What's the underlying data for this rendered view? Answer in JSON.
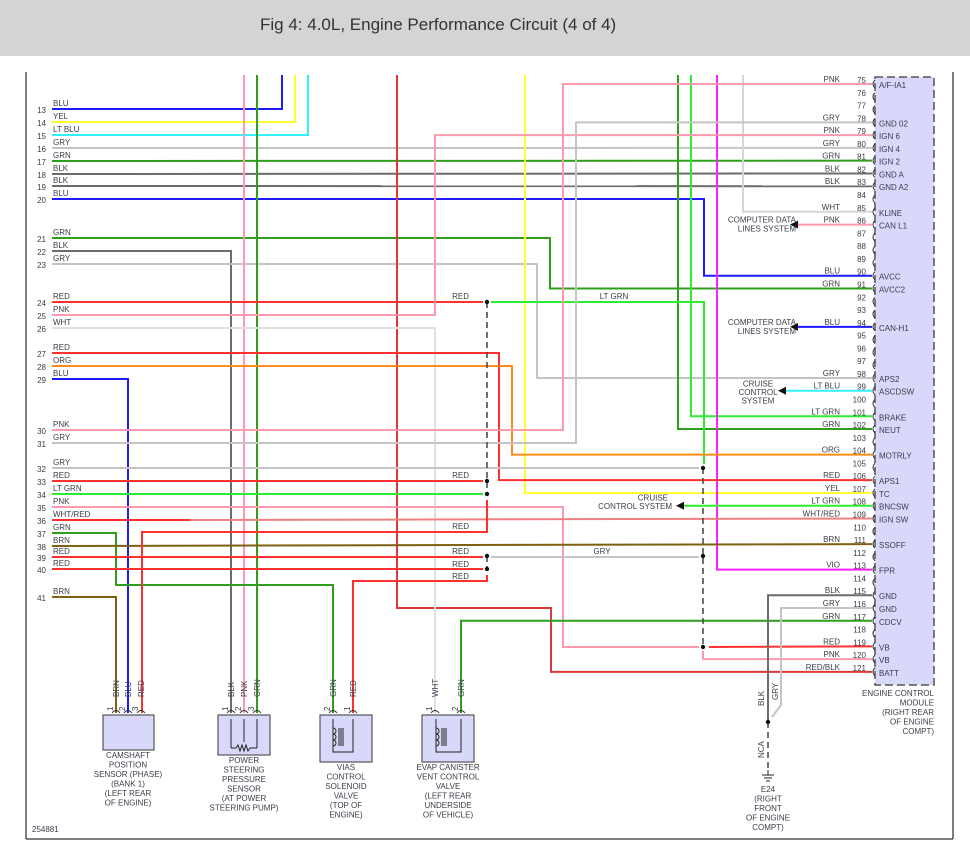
{
  "title": "Fig 4: 4.0L, Engine Performance Circuit (4 of 4)",
  "figure_id": "254881",
  "wire_colors": {
    "BLU": "#1c1cff",
    "YEL": "#ffff30",
    "LT BLU": "#33f0ff",
    "GRY": "#c4c4c4",
    "GRN": "#2f9e1c",
    "BLK": "#6c6c6c",
    "RED": "#ff3030",
    "PNK": "#ff9aae",
    "WHT": "#e0e0e0",
    "ORG": "#ff8c1a",
    "LT GRN": "#30ec30",
    "BRN": "#7f6010",
    "VIO": "#ff20ff",
    "WHT/RED": "#ff5050",
    "RED/BLK": "#e03838"
  },
  "left_pins": [
    {
      "num": "13",
      "color": "BLU"
    },
    {
      "num": "14",
      "color": "YEL"
    },
    {
      "num": "15",
      "color": "LT BLU"
    },
    {
      "num": "16",
      "color": "GRY"
    },
    {
      "num": "17",
      "color": "GRN"
    },
    {
      "num": "18",
      "color": "BLK"
    },
    {
      "num": "19",
      "color": "BLK"
    },
    {
      "num": "20",
      "color": "BLU"
    },
    {
      "num": "21",
      "color": "GRN"
    },
    {
      "num": "22",
      "color": "BLK"
    },
    {
      "num": "23",
      "color": "GRY"
    },
    {
      "num": "24",
      "color": "RED"
    },
    {
      "num": "25",
      "color": "PNK"
    },
    {
      "num": "26",
      "color": "WHT"
    },
    {
      "num": "27",
      "color": "RED"
    },
    {
      "num": "28",
      "color": "ORG"
    },
    {
      "num": "29",
      "color": "BLU"
    },
    {
      "num": "30",
      "color": "PNK"
    },
    {
      "num": "31",
      "color": "GRY"
    },
    {
      "num": "32",
      "color": "GRY"
    },
    {
      "num": "33",
      "color": "RED"
    },
    {
      "num": "34",
      "color": "LT GRN"
    },
    {
      "num": "35",
      "color": "PNK"
    },
    {
      "num": "36",
      "color": "WHT/RED"
    },
    {
      "num": "37",
      "color": "GRN"
    },
    {
      "num": "38",
      "color": "BRN"
    },
    {
      "num": "39",
      "color": "RED"
    },
    {
      "num": "40",
      "color": "RED"
    },
    {
      "num": "41",
      "color": "BRN"
    }
  ],
  "ecm": {
    "label": [
      "ENGINE CONTROL",
      "MODULE",
      "(RIGHT REAR",
      "OF ENGINE",
      "COMPT)"
    ],
    "pins": [
      {
        "num": "75",
        "color": "PNK",
        "name": "A/F-IA1"
      },
      {
        "num": "76",
        "color": "",
        "name": ""
      },
      {
        "num": "77",
        "color": "",
        "name": ""
      },
      {
        "num": "78",
        "color": "GRY",
        "name": "GND 02"
      },
      {
        "num": "79",
        "color": "PNK",
        "name": "IGN 6"
      },
      {
        "num": "80",
        "color": "GRY",
        "name": "IGN 4"
      },
      {
        "num": "81",
        "color": "GRN",
        "name": "IGN 2"
      },
      {
        "num": "82",
        "color": "BLK",
        "name": "GND A"
      },
      {
        "num": "83",
        "color": "BLK",
        "name": "GND A2"
      },
      {
        "num": "84",
        "color": "",
        "name": ""
      },
      {
        "num": "85",
        "color": "WHT",
        "name": "KLINE"
      },
      {
        "num": "86",
        "color": "PNK",
        "name": "CAN L1"
      },
      {
        "num": "87",
        "color": "",
        "name": ""
      },
      {
        "num": "88",
        "color": "",
        "name": ""
      },
      {
        "num": "89",
        "color": "",
        "name": ""
      },
      {
        "num": "90",
        "color": "BLU",
        "name": "AVCC"
      },
      {
        "num": "91",
        "color": "GRN",
        "name": "AVCC2"
      },
      {
        "num": "92",
        "color": "",
        "name": ""
      },
      {
        "num": "93",
        "color": "",
        "name": ""
      },
      {
        "num": "94",
        "color": "BLU",
        "name": "CAN-H1"
      },
      {
        "num": "95",
        "color": "",
        "name": ""
      },
      {
        "num": "96",
        "color": "",
        "name": ""
      },
      {
        "num": "97",
        "color": "",
        "name": ""
      },
      {
        "num": "98",
        "color": "GRY",
        "name": "APS2"
      },
      {
        "num": "99",
        "color": "LT BLU",
        "name": "ASCDSW"
      },
      {
        "num": "100",
        "color": "",
        "name": ""
      },
      {
        "num": "101",
        "color": "LT GRN",
        "name": "BRAKE"
      },
      {
        "num": "102",
        "color": "GRN",
        "name": "NEUT"
      },
      {
        "num": "103",
        "color": "",
        "name": ""
      },
      {
        "num": "104",
        "color": "ORG",
        "name": "MOTRLY"
      },
      {
        "num": "105",
        "color": "",
        "name": ""
      },
      {
        "num": "106",
        "color": "RED",
        "name": "APS1"
      },
      {
        "num": "107",
        "color": "YEL",
        "name": "TC"
      },
      {
        "num": "108",
        "color": "LT GRN",
        "name": "BNCSW"
      },
      {
        "num": "109",
        "color": "WHT/RED",
        "name": "IGN SW"
      },
      {
        "num": "110",
        "color": "",
        "name": ""
      },
      {
        "num": "111",
        "color": "BRN",
        "name": "SSOFF"
      },
      {
        "num": "112",
        "color": "",
        "name": ""
      },
      {
        "num": "113",
        "color": "VIO",
        "name": "FPR"
      },
      {
        "num": "114",
        "color": "",
        "name": ""
      },
      {
        "num": "115",
        "color": "BLK",
        "name": "GND"
      },
      {
        "num": "116",
        "color": "GRY",
        "name": "GND"
      },
      {
        "num": "117",
        "color": "GRN",
        "name": "CDCV"
      },
      {
        "num": "118",
        "color": "",
        "name": ""
      },
      {
        "num": "119",
        "color": "RED",
        "name": "VB"
      },
      {
        "num": "120",
        "color": "PNK",
        "name": "VB"
      },
      {
        "num": "121",
        "color": "RED/BLK",
        "name": "BATT"
      }
    ]
  },
  "destinations": {
    "computer_data_86": [
      "COMPUTER DATA",
      "LINES SYSTEM"
    ],
    "computer_data_94": [
      "COMPUTER DATA",
      "LINES SYSTEM"
    ],
    "cruise_99": [
      "CRUISE",
      "CONTROL",
      "SYSTEM"
    ],
    "cruise_108": [
      "CRUISE",
      "CONTROL SYSTEM"
    ]
  },
  "splice_labels": {
    "s24": "RED",
    "s24_out": "LT GRN",
    "s33": "RED",
    "s37": "RED",
    "s39": "RED",
    "s40": "RED",
    "s40_out": "RED",
    "s39_out": "GRY"
  },
  "components": [
    {
      "id": "camshaft",
      "pins": [
        {
          "num": "1",
          "color": "BRN"
        },
        {
          "num": "2",
          "color": "BLU"
        },
        {
          "num": "3",
          "color": "RED"
        }
      ],
      "label": [
        "CAMSHAFT",
        "POSITION",
        "SENSOR (PHASE)",
        "(BANK 1)",
        "(LEFT REAR",
        "OF ENGINE)"
      ]
    },
    {
      "id": "ps-sensor",
      "pins": [
        {
          "num": "1",
          "color": "BLK"
        },
        {
          "num": "2",
          "color": "PNK"
        },
        {
          "num": "3",
          "color": "GRN"
        }
      ],
      "label": [
        "POWER",
        "STEERING",
        "PRESSURE",
        "SENSOR",
        "(AT POWER",
        "STEERING PUMP)"
      ]
    },
    {
      "id": "vias",
      "pins": [
        {
          "num": "2",
          "color": "GRN"
        },
        {
          "num": "1",
          "color": "RED"
        }
      ],
      "label": [
        "VIAS",
        "CONTROL",
        "SOLENOID",
        "VALVE",
        "(TOP OF",
        "ENGINE)"
      ]
    },
    {
      "id": "evap",
      "pins": [
        {
          "num": "1",
          "color": "WHT"
        },
        {
          "num": "2",
          "color": "GRN"
        }
      ],
      "label": [
        "EVAP CANISTER",
        "VENT CONTROL",
        "VALVE",
        "(LEFT REAR",
        "UNDERSIDE",
        "OF VEHICLE)"
      ]
    }
  ],
  "ground": {
    "wires": [
      "BLK",
      "GRY"
    ],
    "nca": "NCA",
    "label": [
      "E24",
      "(RIGHT",
      "FRONT",
      "OF ENGINE",
      "COMPT)"
    ]
  }
}
